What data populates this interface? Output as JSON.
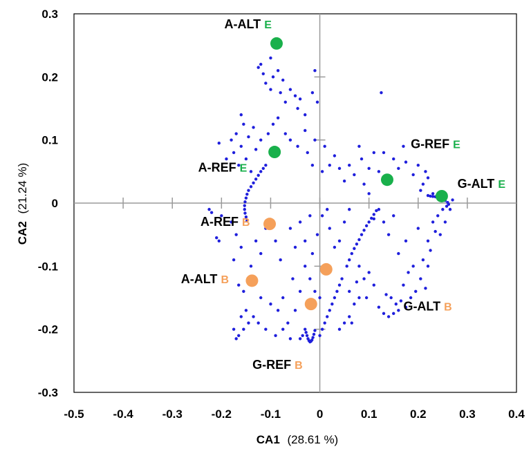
{
  "chart_data": {
    "type": "scatter",
    "title": "",
    "xlabel": {
      "name": "CA1",
      "pct": "(28.61 %)"
    },
    "ylabel": {
      "name": "CA2",
      "pct": "(21.24 %)"
    },
    "xlim": [
      -0.5,
      0.4
    ],
    "ylim": [
      -0.3,
      0.3
    ],
    "x_ticks": [
      "-0.5",
      "-0.4",
      "-0.3",
      "-0.2",
      "-0.1",
      "0",
      "0.1",
      "0.2",
      "0.3",
      "0.4"
    ],
    "y_ticks": [
      "0.3",
      "0.2",
      "0.1",
      "0",
      "-0.1",
      "-0.2",
      "-0.3"
    ],
    "grid": false,
    "legend": "none",
    "colors": {
      "dots": "#1f1fdc",
      "E": "#19b04b",
      "B": "#f5a05a",
      "axis": "#9a9a9a"
    },
    "series": [
      {
        "marker": "large-circle",
        "color": "#19b04b",
        "points": [
          {
            "x": -0.088,
            "y": 0.253
          },
          {
            "x": -0.092,
            "y": 0.081
          },
          {
            "x": 0.137,
            "y": 0.037
          },
          {
            "x": 0.248,
            "y": 0.011
          }
        ]
      },
      {
        "marker": "large-circle",
        "color": "#f5a05a",
        "points": [
          {
            "x": -0.102,
            "y": -0.033
          },
          {
            "x": -0.138,
            "y": -0.123
          },
          {
            "x": 0.013,
            "y": -0.105
          },
          {
            "x": -0.018,
            "y": -0.16
          }
        ]
      },
      {
        "marker": "small-dot",
        "color": "#1f1fdc",
        "points": [
          [
            -0.12,
            0.22
          ],
          [
            -0.125,
            0.215
          ],
          [
            -0.115,
            0.205
          ],
          [
            -0.11,
            0.19
          ],
          [
            -0.1,
            0.23
          ],
          [
            -0.1,
            0.18
          ],
          [
            -0.095,
            0.2
          ],
          [
            -0.085,
            0.21
          ],
          [
            -0.08,
            0.175
          ],
          [
            -0.075,
            0.195
          ],
          [
            -0.07,
            0.16
          ],
          [
            -0.06,
            0.18
          ],
          [
            -0.05,
            0.17
          ],
          [
            -0.045,
            0.15
          ],
          [
            -0.04,
            0.165
          ],
          [
            -0.03,
            0.14
          ],
          [
            -0.015,
            0.175
          ],
          [
            -0.01,
            0.21
          ],
          [
            -0.005,
            0.16
          ],
          [
            -0.16,
            0.14
          ],
          [
            -0.155,
            0.125
          ],
          [
            -0.17,
            0.11
          ],
          [
            -0.145,
            0.105
          ],
          [
            -0.16,
            0.09
          ],
          [
            -0.175,
            0.08
          ],
          [
            -0.15,
            0.07
          ],
          [
            -0.165,
            0.06
          ],
          [
            -0.14,
            0.05
          ],
          [
            -0.18,
            0.1
          ],
          [
            -0.19,
            0.07
          ],
          [
            -0.205,
            0.095
          ],
          [
            -0.135,
            0.12
          ],
          [
            -0.12,
            0.1
          ],
          [
            -0.13,
            0.085
          ],
          [
            -0.105,
            0.11
          ],
          [
            -0.095,
            0.125
          ],
          [
            -0.085,
            0.135
          ],
          [
            -0.07,
            0.11
          ],
          [
            -0.06,
            0.1
          ],
          [
            -0.045,
            0.09
          ],
          [
            -0.03,
            0.115
          ],
          [
            -0.025,
            0.08
          ],
          [
            -0.015,
            0.06
          ],
          [
            -0.01,
            0.1
          ],
          [
            -0.12,
            0.05
          ],
          [
            -0.125,
            0.044
          ],
          [
            -0.13,
            0.038
          ],
          [
            -0.135,
            0.032
          ],
          [
            -0.14,
            0.026
          ],
          [
            -0.145,
            0.02
          ],
          [
            -0.148,
            0.014
          ],
          [
            -0.15,
            0.008
          ],
          [
            -0.152,
            0.002
          ],
          [
            -0.153,
            -0.004
          ],
          [
            -0.153,
            -0.01
          ],
          [
            -0.152,
            -0.016
          ],
          [
            -0.15,
            -0.022
          ],
          [
            -0.148,
            -0.028
          ],
          [
            -0.115,
            0.055
          ],
          [
            -0.11,
            0.06
          ],
          [
            0.005,
            0.05
          ],
          [
            0.01,
            0.09
          ],
          [
            0.02,
            0.06
          ],
          [
            0.03,
            0.075
          ],
          [
            0.04,
            0.055
          ],
          [
            0.05,
            0.035
          ],
          [
            0.06,
            0.06
          ],
          [
            0.07,
            0.045
          ],
          [
            0.08,
            0.09
          ],
          [
            0.085,
            0.07
          ],
          [
            0.09,
            0.03
          ],
          [
            0.1,
            0.055
          ],
          [
            0.11,
            0.08
          ],
          [
            0.12,
            0.05
          ],
          [
            0.125,
            0.175
          ],
          [
            0.13,
            0.08
          ],
          [
            0.15,
            0.07
          ],
          [
            0.16,
            0.055
          ],
          [
            0.17,
            0.09
          ],
          [
            0.175,
            0.065
          ],
          [
            0.19,
            0.045
          ],
          [
            0.2,
            0.06
          ],
          [
            0.21,
            0.03
          ],
          [
            0.215,
            0.05
          ],
          [
            0.205,
            0.02
          ],
          [
            0.22,
            0.04
          ],
          [
            0.23,
            0.015
          ],
          [
            0.22,
            0.012
          ],
          [
            0.225,
            0.011
          ],
          [
            0.23,
            0.0105
          ],
          [
            0.235,
            0.01
          ],
          [
            0.24,
            0.009
          ],
          [
            0.245,
            0.008
          ],
          [
            0.25,
            0.006
          ],
          [
            0.255,
            0.004
          ],
          [
            0.26,
            0.001
          ],
          [
            0.262,
            -0.002
          ],
          [
            0.258,
            -0.005
          ],
          [
            0.27,
            0.005
          ],
          [
            0.265,
            -0.01
          ],
          [
            0.25,
            -0.01
          ],
          [
            0.24,
            -0.02
          ],
          [
            0.23,
            -0.03
          ],
          [
            0.235,
            -0.045
          ],
          [
            0.22,
            -0.06
          ],
          [
            0.225,
            -0.075
          ],
          [
            0.21,
            -0.09
          ],
          [
            0.2,
            -0.04
          ],
          [
            0.19,
            -0.1
          ],
          [
            0.205,
            -0.12
          ],
          [
            0.22,
            -0.1
          ],
          [
            0.245,
            -0.05
          ],
          [
            0.255,
            -0.03
          ],
          [
            0.215,
            -0.135
          ],
          [
            0.18,
            -0.11
          ],
          [
            0.17,
            -0.13
          ],
          [
            0.175,
            -0.06
          ],
          [
            0.16,
            -0.08
          ],
          [
            0.15,
            -0.02
          ],
          [
            0.14,
            -0.05
          ],
          [
            0.13,
            -0.03
          ],
          [
            0.12,
            -0.01
          ],
          [
            0.11,
            -0.025
          ],
          [
            0.1,
            0.015
          ],
          [
            0.135,
            -0.145
          ],
          [
            0.145,
            -0.15
          ],
          [
            0.155,
            -0.16
          ],
          [
            0.165,
            -0.155
          ],
          [
            0.175,
            -0.165
          ],
          [
            0.185,
            -0.15
          ],
          [
            0.195,
            -0.14
          ],
          [
            0.16,
            -0.17
          ],
          [
            0.15,
            -0.175
          ],
          [
            0.14,
            -0.18
          ],
          [
            0.13,
            -0.175
          ],
          [
            0.12,
            -0.165
          ],
          [
            0.055,
            -0.1
          ],
          [
            0.06,
            -0.09
          ],
          [
            0.065,
            -0.08
          ],
          [
            0.07,
            -0.072
          ],
          [
            0.075,
            -0.065
          ],
          [
            0.08,
            -0.058
          ],
          [
            0.085,
            -0.05
          ],
          [
            0.09,
            -0.043
          ],
          [
            0.095,
            -0.036
          ],
          [
            0.1,
            -0.03
          ],
          [
            0.105,
            -0.024
          ],
          [
            0.11,
            -0.018
          ],
          [
            0.115,
            -0.012
          ],
          [
            0.045,
            -0.12
          ],
          [
            0.04,
            -0.13
          ],
          [
            0.035,
            -0.14
          ],
          [
            0.03,
            -0.15
          ],
          [
            0.025,
            -0.16
          ],
          [
            0.02,
            -0.17
          ],
          [
            0.015,
            -0.18
          ],
          [
            0.01,
            -0.19
          ],
          [
            0.005,
            -0.2
          ],
          [
            0.0,
            -0.21
          ],
          [
            0.06,
            -0.14
          ],
          [
            0.07,
            -0.16
          ],
          [
            0.08,
            -0.15
          ],
          [
            0.09,
            -0.12
          ],
          [
            0.1,
            -0.11
          ],
          [
            0.11,
            -0.13
          ],
          [
            0.06,
            -0.18
          ],
          [
            0.05,
            -0.19
          ],
          [
            0.04,
            -0.2
          ],
          [
            0.08,
            -0.1
          ],
          [
            0.075,
            -0.125
          ],
          [
            0.095,
            -0.15
          ],
          [
            0.065,
            -0.19
          ],
          [
            -0.03,
            -0.2
          ],
          [
            -0.028,
            -0.205
          ],
          [
            -0.026,
            -0.21
          ],
          [
            -0.024,
            -0.215
          ],
          [
            -0.022,
            -0.218
          ],
          [
            -0.02,
            -0.22
          ],
          [
            -0.018,
            -0.219
          ],
          [
            -0.016,
            -0.217
          ],
          [
            -0.014,
            -0.213
          ],
          [
            -0.012,
            -0.208
          ],
          [
            -0.01,
            -0.202
          ],
          [
            -0.035,
            -0.21
          ],
          [
            -0.04,
            -0.215
          ],
          [
            -0.175,
            -0.2
          ],
          [
            -0.165,
            -0.21
          ],
          [
            -0.17,
            -0.215
          ],
          [
            -0.155,
            -0.2
          ],
          [
            -0.145,
            -0.19
          ],
          [
            -0.16,
            -0.18
          ],
          [
            -0.15,
            -0.17
          ],
          [
            -0.135,
            -0.18
          ],
          [
            -0.125,
            -0.19
          ],
          [
            -0.11,
            -0.2
          ],
          [
            -0.09,
            -0.21
          ],
          [
            -0.075,
            -0.2
          ],
          [
            -0.06,
            -0.215
          ],
          [
            -0.065,
            -0.19
          ],
          [
            -0.05,
            -0.17
          ],
          [
            -0.085,
            -0.17
          ],
          [
            -0.1,
            -0.16
          ],
          [
            -0.12,
            -0.15
          ],
          [
            -0.075,
            -0.15
          ],
          [
            -0.04,
            -0.14
          ],
          [
            -0.055,
            -0.12
          ],
          [
            -0.03,
            -0.1
          ],
          [
            -0.02,
            -0.12
          ],
          [
            -0.01,
            -0.14
          ],
          [
            0.0,
            -0.15
          ],
          [
            -0.205,
            -0.06
          ],
          [
            -0.21,
            -0.055
          ],
          [
            -0.22,
            -0.015
          ],
          [
            -0.225,
            -0.01
          ],
          [
            -0.2,
            -0.02
          ],
          [
            -0.18,
            -0.03
          ],
          [
            -0.17,
            -0.05
          ],
          [
            -0.16,
            -0.07
          ],
          [
            -0.175,
            -0.09
          ],
          [
            -0.165,
            -0.13
          ],
          [
            -0.155,
            -0.14
          ],
          [
            -0.14,
            -0.1
          ],
          [
            -0.13,
            -0.06
          ],
          [
            -0.12,
            -0.08
          ],
          [
            -0.11,
            -0.04
          ],
          [
            -0.09,
            -0.06
          ],
          [
            -0.08,
            -0.09
          ],
          [
            -0.06,
            -0.04
          ],
          [
            -0.05,
            -0.07
          ],
          [
            -0.04,
            -0.03
          ],
          [
            -0.03,
            -0.06
          ],
          [
            -0.02,
            -0.02
          ],
          [
            -0.015,
            -0.08
          ],
          [
            -0.005,
            -0.05
          ],
          [
            0.005,
            -0.02
          ],
          [
            0.02,
            -0.04
          ],
          [
            0.03,
            -0.07
          ],
          [
            0.04,
            -0.06
          ],
          [
            0.05,
            -0.03
          ],
          [
            0.06,
            -0.01
          ],
          [
            0.015,
            -0.01
          ]
        ]
      }
    ],
    "annotations": [
      {
        "main": "A-ALT",
        "sub": "E",
        "sub_color": "E",
        "x": -0.098,
        "y": 0.277,
        "anchor": "end"
      },
      {
        "main": "A-REF",
        "sub": "E",
        "sub_color": "E",
        "x": -0.148,
        "y": 0.05,
        "anchor": "end"
      },
      {
        "main": "G-REF",
        "sub": "E",
        "sub_color": "E",
        "x": 0.185,
        "y": 0.087,
        "anchor": "start"
      },
      {
        "main": "G-ALT",
        "sub": "E",
        "sub_color": "E",
        "x": 0.28,
        "y": 0.024,
        "anchor": "start"
      },
      {
        "main": "A-REF",
        "sub": "B",
        "sub_color": "B",
        "x": -0.142,
        "y": -0.036,
        "anchor": "end"
      },
      {
        "main": "A-ALT",
        "sub": "B",
        "sub_color": "B",
        "x": -0.185,
        "y": -0.127,
        "anchor": "end"
      },
      {
        "main": "G-ALT",
        "sub": "B",
        "sub_color": "B",
        "x": 0.17,
        "y": -0.17,
        "anchor": "start"
      },
      {
        "main": "G-REF",
        "sub": "B",
        "sub_color": "B",
        "x": -0.035,
        "y": -0.263,
        "anchor": "end"
      }
    ]
  }
}
